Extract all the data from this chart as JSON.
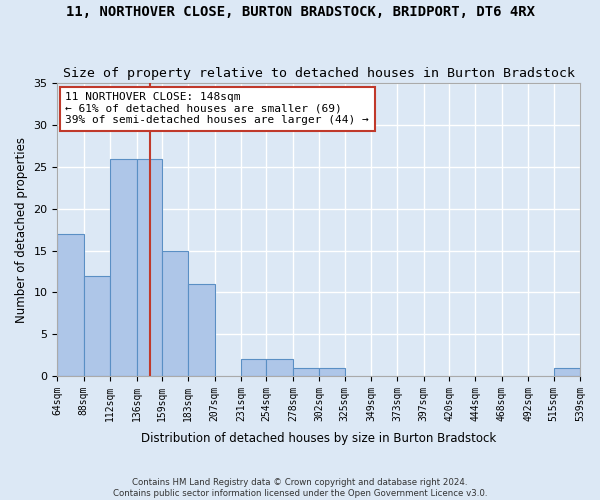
{
  "title": "11, NORTHOVER CLOSE, BURTON BRADSTOCK, BRIDPORT, DT6 4RX",
  "subtitle": "Size of property relative to detached houses in Burton Bradstock",
  "xlabel": "Distribution of detached houses by size in Burton Bradstock",
  "ylabel": "Number of detached properties",
  "footer_line1": "Contains HM Land Registry data © Crown copyright and database right 2024.",
  "footer_line2": "Contains public sector information licensed under the Open Government Licence v3.0.",
  "annotation_line1": "11 NORTHOVER CLOSE: 148sqm",
  "annotation_line2": "← 61% of detached houses are smaller (69)",
  "annotation_line3": "39% of semi-detached houses are larger (44) →",
  "property_size": 148,
  "bar_edges": [
    64,
    88,
    112,
    136,
    159,
    183,
    207,
    231,
    254,
    278,
    302,
    325,
    349,
    373,
    397,
    420,
    444,
    468,
    492,
    515,
    539
  ],
  "bar_heights": [
    17,
    12,
    26,
    26,
    15,
    11,
    0,
    2,
    2,
    1,
    1,
    0,
    0,
    0,
    0,
    0,
    0,
    0,
    0,
    1
  ],
  "bar_color": "#aec6e8",
  "bar_edge_color": "#5a8fc4",
  "vline_color": "#c0392b",
  "vline_x": 148,
  "annotation_box_edge_color": "#c0392b",
  "ylim": [
    0,
    35
  ],
  "yticks": [
    0,
    5,
    10,
    15,
    20,
    25,
    30,
    35
  ],
  "bg_color": "#dce8f5",
  "grid_color": "#ffffff",
  "title_fontsize": 10,
  "subtitle_fontsize": 9.5,
  "tick_labels": [
    "64sqm",
    "88sqm",
    "112sqm",
    "136sqm",
    "159sqm",
    "183sqm",
    "207sqm",
    "231sqm",
    "254sqm",
    "278sqm",
    "302sqm",
    "325sqm",
    "349sqm",
    "373sqm",
    "397sqm",
    "420sqm",
    "444sqm",
    "468sqm",
    "492sqm",
    "515sqm",
    "539sqm"
  ]
}
